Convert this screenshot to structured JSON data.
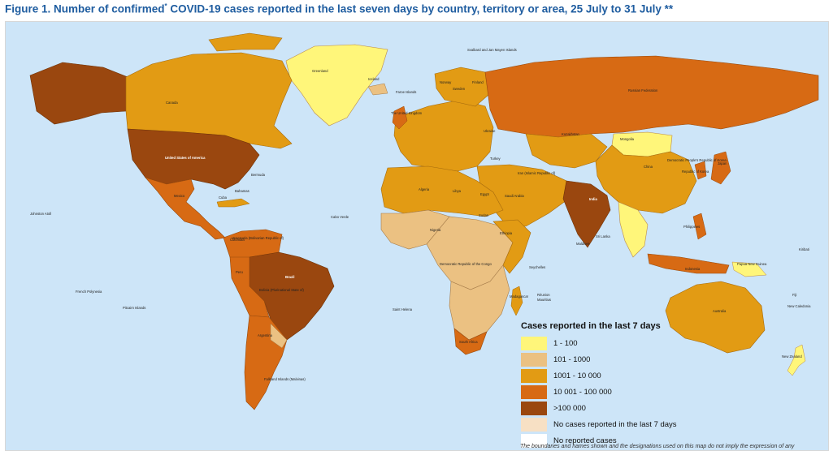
{
  "figure": {
    "title": "Figure 1. Number of confirmed",
    "title_sup": "*",
    "title_rest": " COVID-19 cases reported in the last seven days by country, territory or area, 25 July to 31 July **"
  },
  "colors": {
    "ocean": "#cde5f8",
    "c1_100": "#fff67a",
    "c101_1000": "#ebc182",
    "c1001_10000": "#e29b14",
    "c10001_100000": "#d76a14",
    "c100000_plus": "#9a470f",
    "no_cases_7d": "#f7e0c4",
    "no_reported": "#ffffff"
  },
  "legend": {
    "title": "Cases reported in the last 7 days",
    "items": [
      {
        "label": "1 - 100",
        "color": "#fff67a"
      },
      {
        "label": "101 - 1000",
        "color": "#ebc182"
      },
      {
        "label": "1001 - 10 000",
        "color": "#e29b14"
      },
      {
        "label": "10 001 - 100 000",
        "color": "#d76a14"
      },
      {
        "label": ">100 000",
        "color": "#9a470f"
      },
      {
        "label": "No cases reported in the last 7 days",
        "color": "#f7e0c4"
      },
      {
        "label": "No reported cases",
        "color": "#ffffff"
      }
    ]
  },
  "map_labels": {
    "greenland": "Greenland",
    "canada": "Canada",
    "usa": "United States of America",
    "mexico": "Mexico",
    "brazil": "Brazil",
    "argentina": "Argentina",
    "bolivia": "Bolivia (Plurinational State of)",
    "peru": "Peru",
    "colombia": "Colombia",
    "venezuela": "Venezuela (Bolivarian Republic of)",
    "russia": "Russian Federation",
    "china": "China",
    "india": "India",
    "mongolia": "Mongolia",
    "kazakhstan": "Kazakhstan",
    "australia": "Australia",
    "algeria": "Algeria",
    "libya": "Libya",
    "egypt": "Egypt",
    "sudan": "Sudan",
    "nigeria": "Nigeria",
    "drc": "Democratic Republic of the Congo",
    "south_africa": "South Africa",
    "ethiopia": "Ethiopia",
    "saudi_arabia": "Saudi Arabia",
    "iran": "Iran (Islamic Republic of)",
    "indonesia": "Indonesia",
    "png": "Papua New Guinea",
    "new_zealand": "New Zealand",
    "svalbard": "Svalbard and Jan Mayen Islands",
    "iceland": "Iceland",
    "faroe": "Faroe Islands",
    "uk": "The United Kingdom",
    "norway": "Norway",
    "sweden": "Sweden",
    "finland": "Finland",
    "ukraine": "Ukraine",
    "turkey": "Turkey",
    "japan": "Japan",
    "rok": "Republic of Korea",
    "dprk": "Democratic People's Republic of Korea",
    "philippines": "Philippines",
    "madagascar": "Madagascar",
    "saint_helena": "Saint Helena",
    "falkland": "Falkland Islands (Malvinas)",
    "pitcairn": "Pitcairn Islands",
    "french_polynesia": "French Polynesia",
    "cabo_verde": "Cabo Verde",
    "bermuda": "Bermuda",
    "bahamas": "Bahamas",
    "cuba": "Cuba",
    "hawaii": "Johnston Atoll",
    "new_caledonia": "New Caledonia",
    "fiji": "Fiji",
    "kiribati": "Kiribati",
    "maldives": "Maldives",
    "sri_lanka": "Sri Lanka",
    "seychelles": "Seychelles",
    "mauritius": "Mauritius",
    "reunion": "Réunion"
  },
  "disclaimer": "The boundaries and names shown and the designations used on this map do not imply the expression of any"
}
